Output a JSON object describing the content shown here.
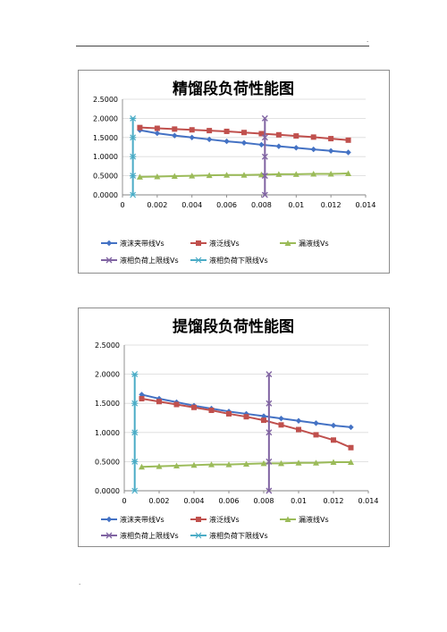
{
  "colors": {
    "series1": "#4472c4",
    "series2": "#c0504d",
    "series3": "#9bbb59",
    "series4": "#8064a2",
    "series5": "#4bacc6",
    "grid": "#d9d9d9"
  },
  "chart_data": [
    {
      "type": "line",
      "title": "精馏段负荷性能图",
      "xlim": [
        0,
        0.014
      ],
      "ylim": [
        0,
        2.5
      ],
      "x_tick_labels": [
        "0",
        "0.002",
        "0.004",
        "0.006",
        "0.008",
        "0.01",
        "0.012",
        "0.014"
      ],
      "y_tick_labels": [
        "0.0000",
        "0.5000",
        "1.0000",
        "1.5000",
        "2.0000",
        "2.5000"
      ],
      "grid": "horizontal",
      "legend_position": "bottom",
      "series": [
        {
          "name": "液沫夹带线Vs",
          "marker": "diamond",
          "x": [
            0.001,
            0.002,
            0.003,
            0.004,
            0.005,
            0.006,
            0.007,
            0.008,
            0.009,
            0.01,
            0.011,
            0.012,
            0.013
          ],
          "y": [
            1.69,
            1.61,
            1.55,
            1.5,
            1.45,
            1.4,
            1.36,
            1.31,
            1.27,
            1.23,
            1.19,
            1.15,
            1.11
          ]
        },
        {
          "name": "液泛线Vs",
          "marker": "square",
          "x": [
            0.001,
            0.002,
            0.003,
            0.004,
            0.005,
            0.006,
            0.007,
            0.008,
            0.009,
            0.01,
            0.011,
            0.012,
            0.013
          ],
          "y": [
            1.76,
            1.74,
            1.72,
            1.7,
            1.68,
            1.66,
            1.63,
            1.6,
            1.57,
            1.54,
            1.51,
            1.47,
            1.43
          ]
        },
        {
          "name": "漏液线Vs",
          "marker": "triangle",
          "x": [
            0.001,
            0.002,
            0.003,
            0.004,
            0.005,
            0.006,
            0.007,
            0.008,
            0.009,
            0.01,
            0.011,
            0.012,
            0.013
          ],
          "y": [
            0.47,
            0.48,
            0.49,
            0.5,
            0.51,
            0.52,
            0.52,
            0.53,
            0.54,
            0.54,
            0.55,
            0.55,
            0.56
          ]
        },
        {
          "name": "液相负荷上限线Vs",
          "marker": "x",
          "x": [
            0.0082,
            0.0082,
            0.0082,
            0.0082,
            0.0082
          ],
          "y": [
            0,
            0.5,
            1.0,
            1.5,
            2.0
          ]
        },
        {
          "name": "液相负荷下限线Vs",
          "marker": "asterisk",
          "x": [
            0.0006,
            0.0006,
            0.0006,
            0.0006,
            0.0006
          ],
          "y": [
            0,
            0.5,
            1.0,
            1.5,
            2.0
          ]
        }
      ]
    },
    {
      "type": "line",
      "title": "提馏段负荷性能图",
      "xlim": [
        0,
        0.014
      ],
      "ylim": [
        0,
        2.5
      ],
      "x_tick_labels": [
        "0",
        "0.002",
        "0.004",
        "0.006",
        "0.008",
        "0.01",
        "0.012",
        "0.014"
      ],
      "y_tick_labels": [
        "0.0000",
        "0.5000",
        "1.0000",
        "1.5000",
        "2.0000",
        "2.5000"
      ],
      "grid": "horizontal",
      "legend_position": "bottom",
      "series": [
        {
          "name": "液沫夹带线Vs",
          "marker": "diamond",
          "x": [
            0.001,
            0.002,
            0.003,
            0.004,
            0.005,
            0.006,
            0.007,
            0.008,
            0.009,
            0.01,
            0.011,
            0.012,
            0.013
          ],
          "y": [
            1.65,
            1.58,
            1.52,
            1.46,
            1.41,
            1.36,
            1.32,
            1.28,
            1.24,
            1.2,
            1.16,
            1.12,
            1.09
          ]
        },
        {
          "name": "液泛线Vs",
          "marker": "square",
          "x": [
            0.001,
            0.002,
            0.003,
            0.004,
            0.005,
            0.006,
            0.007,
            0.008,
            0.009,
            0.01,
            0.011,
            0.012,
            0.013
          ],
          "y": [
            1.58,
            1.53,
            1.48,
            1.43,
            1.38,
            1.32,
            1.27,
            1.21,
            1.13,
            1.05,
            0.96,
            0.87,
            0.74
          ]
        },
        {
          "name": "漏液线Vs",
          "marker": "triangle",
          "x": [
            0.001,
            0.002,
            0.003,
            0.004,
            0.005,
            0.006,
            0.007,
            0.008,
            0.009,
            0.01,
            0.011,
            0.012,
            0.013
          ],
          "y": [
            0.41,
            0.42,
            0.43,
            0.44,
            0.45,
            0.45,
            0.46,
            0.47,
            0.47,
            0.48,
            0.48,
            0.49,
            0.49
          ]
        },
        {
          "name": "液相负荷上限线Vs",
          "marker": "x",
          "x": [
            0.0083,
            0.0083,
            0.0083,
            0.0083,
            0.0083
          ],
          "y": [
            0,
            0.5,
            1.0,
            1.5,
            2.0
          ]
        },
        {
          "name": "液相负荷下限线Vs",
          "marker": "asterisk",
          "x": [
            0.0006,
            0.0006,
            0.0006,
            0.0006,
            0.0006
          ],
          "y": [
            0,
            0.5,
            1.0,
            1.5,
            2.0
          ]
        }
      ]
    }
  ]
}
